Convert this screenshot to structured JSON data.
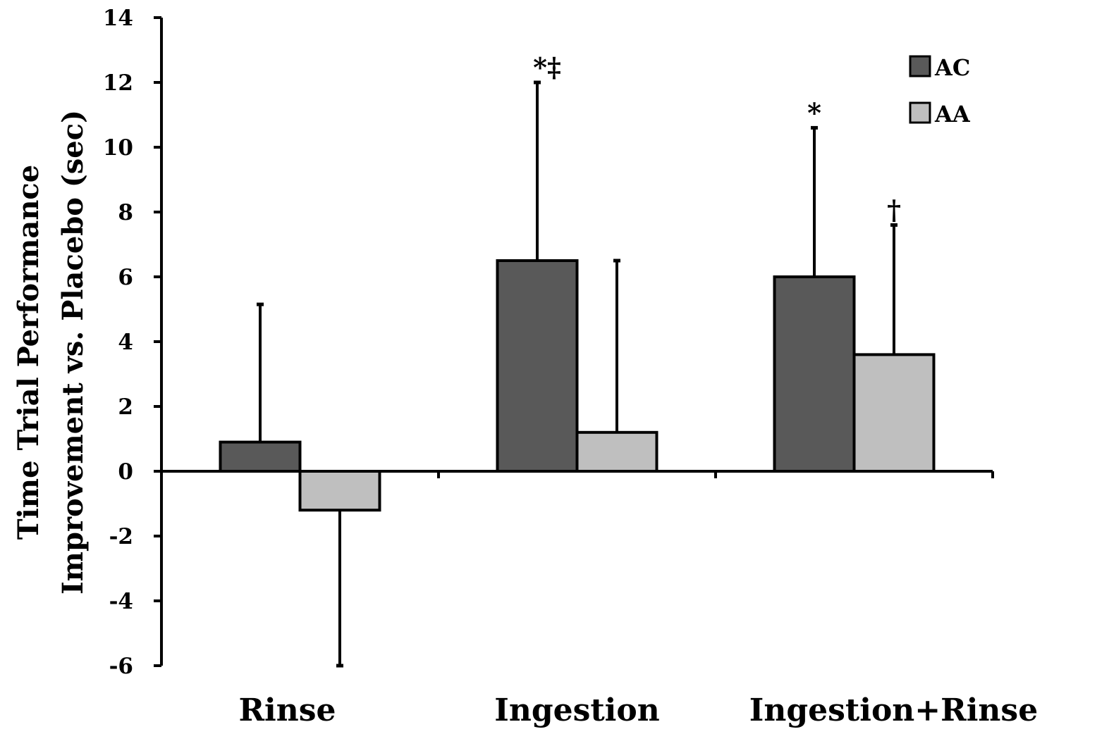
{
  "chart_data": {
    "type": "bar",
    "categories": [
      "Rinse",
      "Ingestion",
      "Ingestion+Rinse"
    ],
    "series": [
      {
        "name": "AC",
        "color": "#595959",
        "values": [
          0.9,
          6.5,
          6.0
        ],
        "error_upper": [
          5.15,
          12.0,
          10.6
        ]
      },
      {
        "name": "AA",
        "color": "#bfbfbf",
        "values": [
          -1.2,
          1.2,
          3.6
        ],
        "error_lower": [
          -6.0,
          null,
          null
        ],
        "error_upper": [
          null,
          6.5,
          7.6
        ]
      }
    ],
    "annotations": [
      {
        "category": "Ingestion",
        "series": "AC",
        "text": "*‡"
      },
      {
        "category": "Ingestion+Rinse",
        "series": "AC",
        "text": "*"
      },
      {
        "category": "Ingestion+Rinse",
        "series": "AA",
        "text": "†"
      }
    ],
    "ylabel_lines": [
      "Time Trial Performance",
      "Improvement vs. Placebo (sec)"
    ],
    "ylim": [
      -6,
      14
    ],
    "yticks": [
      "-6",
      "-4",
      "-2",
      "0",
      "2",
      "4",
      "6",
      "8",
      "10",
      "12",
      "14"
    ],
    "legend_position": "top-right",
    "grid": false
  }
}
